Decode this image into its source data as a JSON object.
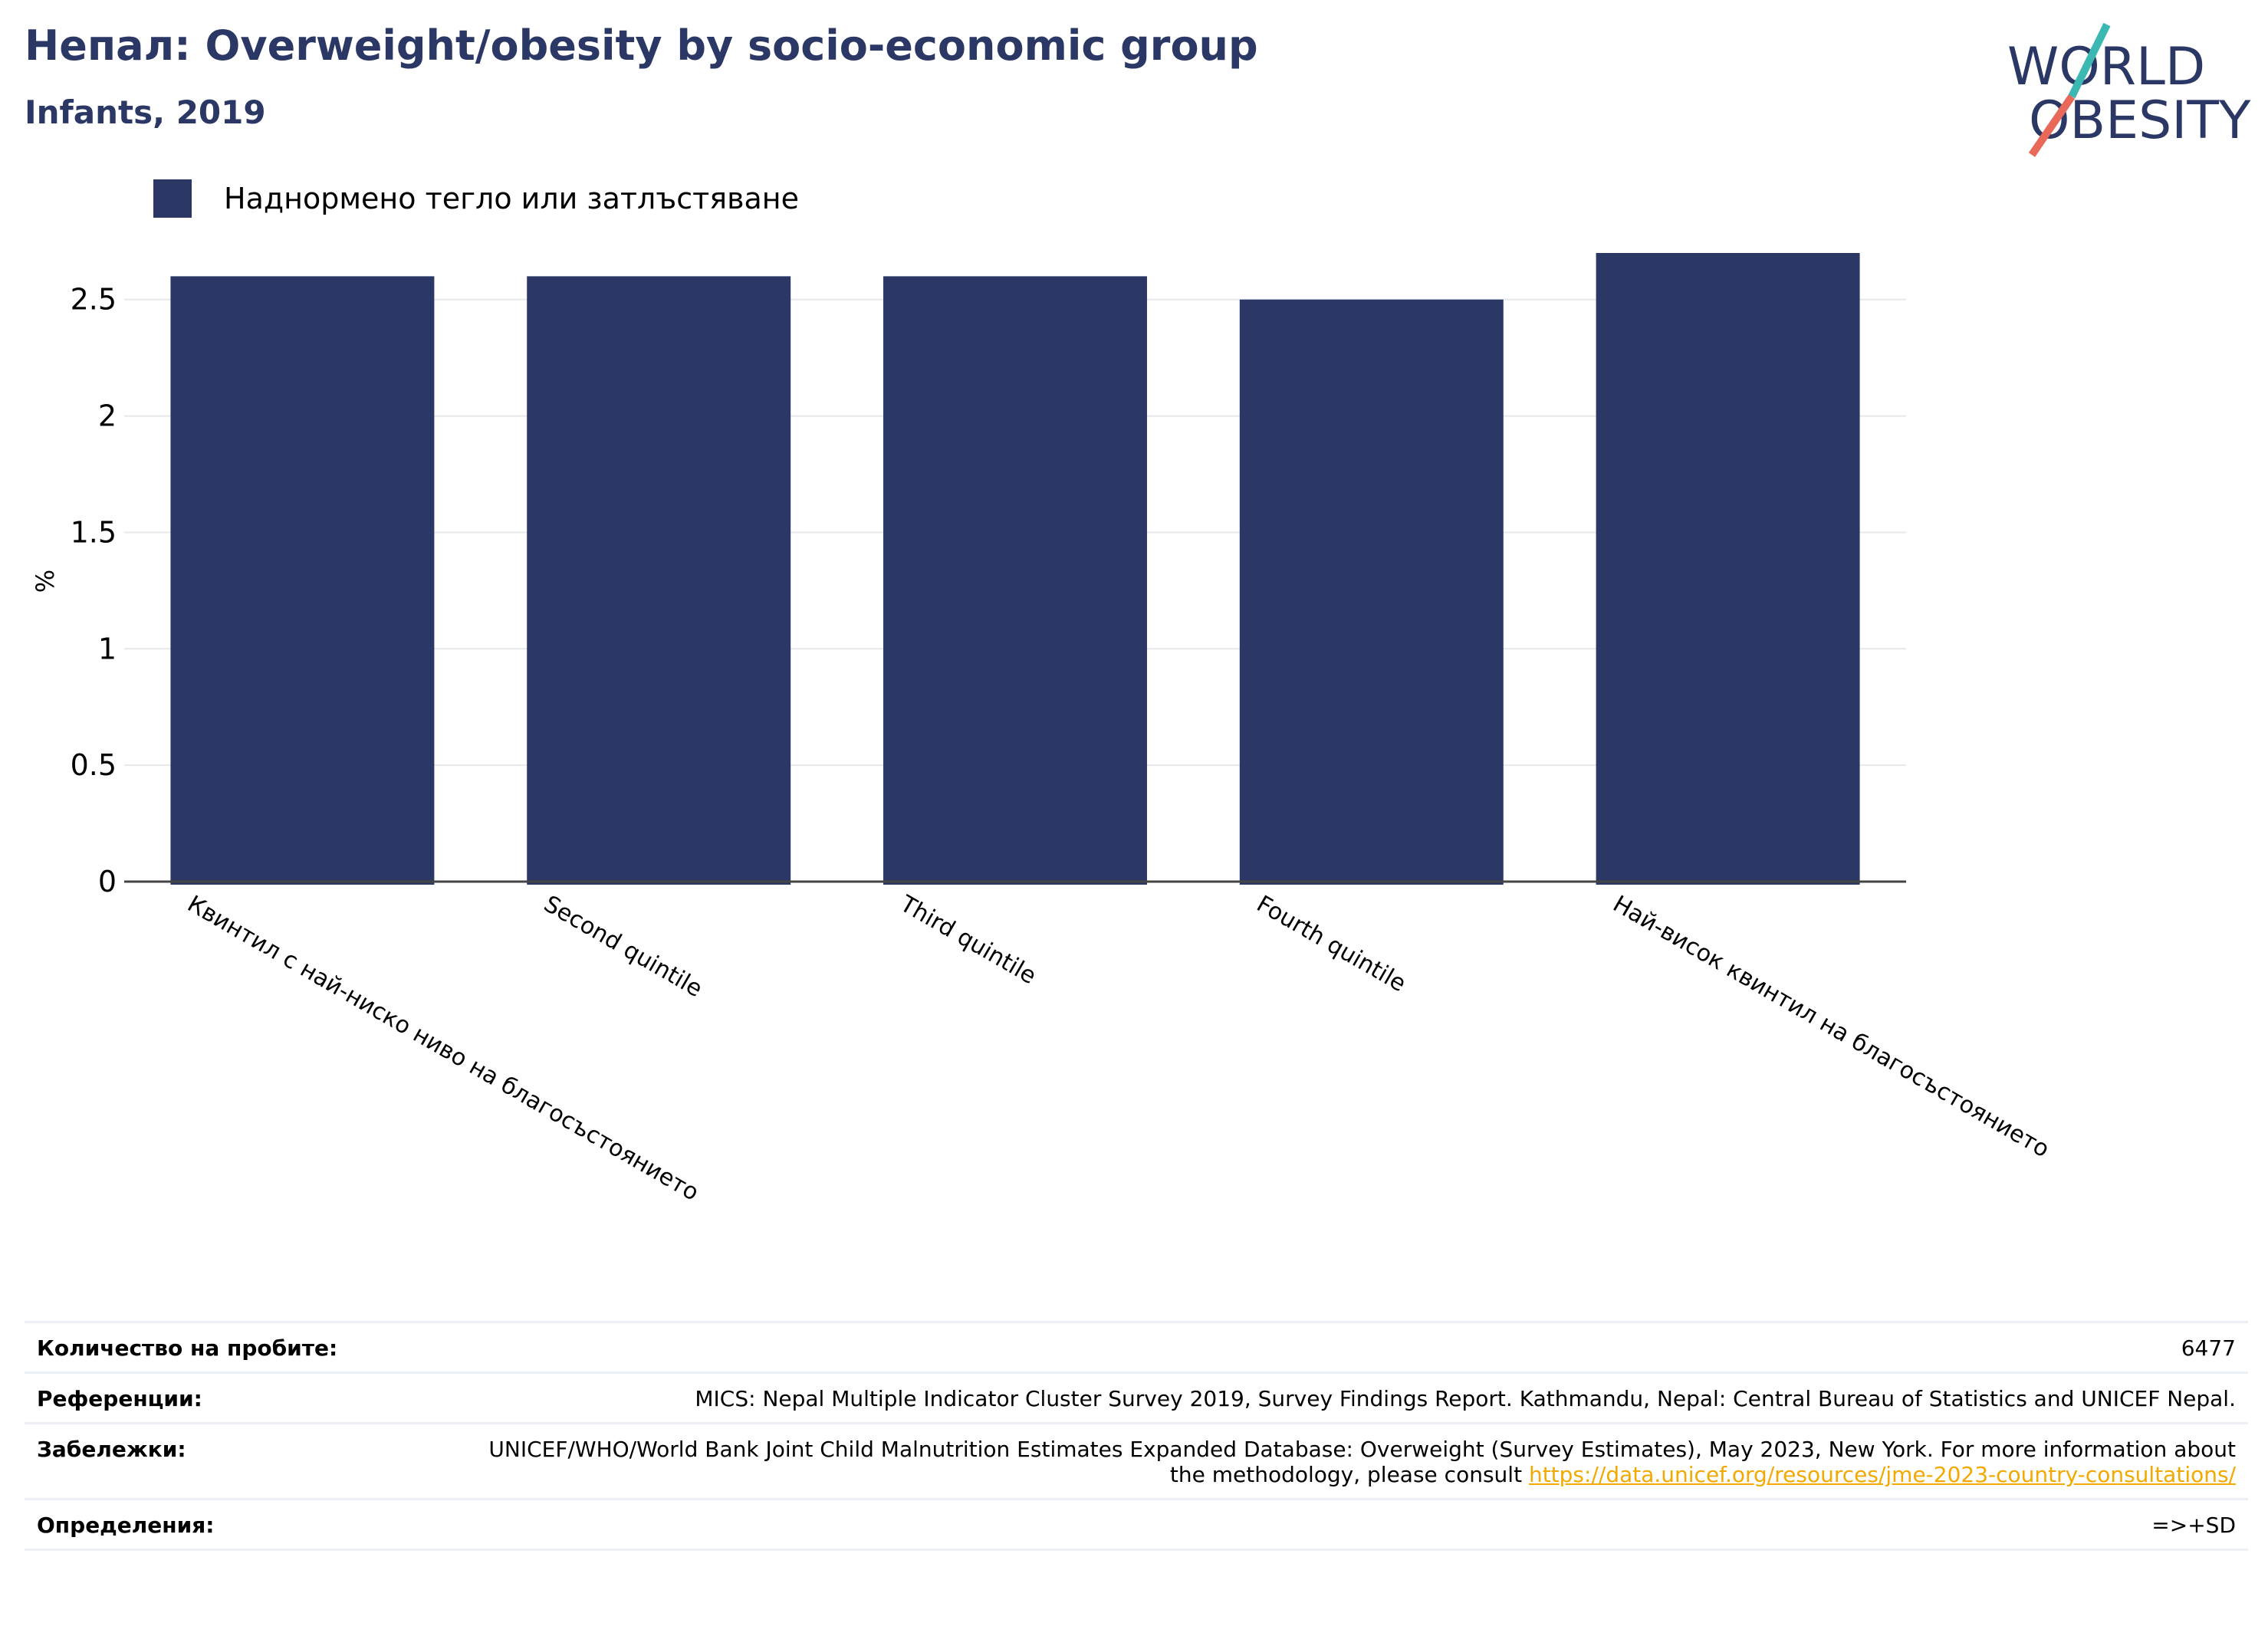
{
  "header": {
    "title": "Непал: Overweight/obesity by socio-economic group",
    "subtitle": "Infants, 2019"
  },
  "logo": {
    "line1": "WORLD",
    "line2": "OBESITY",
    "text_color": "#2b3765",
    "slash_teal": "#3bb8b2",
    "slash_red": "#e8685a"
  },
  "legend": {
    "label": "Наднормено тегло или затлъстяване",
    "color": "#2b3765"
  },
  "chart_data": {
    "type": "bar",
    "title": "Непал: Overweight/obesity by socio-economic group",
    "subtitle": "Infants, 2019",
    "ylabel": "%",
    "xlabel": "",
    "ylim": [
      0,
      2.7
    ],
    "yticks": [
      0,
      0.5,
      1,
      1.5,
      2,
      2.5
    ],
    "ytick_labels": [
      "0",
      "0.5",
      "1",
      "1.5",
      "2",
      "2.5"
    ],
    "grid": true,
    "legend_position": "top-left",
    "categories": [
      "Квинтил с най-ниско ниво на благосъстоянието",
      "Second quintile",
      "Third quintile",
      "Fourth quintile",
      "Най-висок квинтил на благосъстоянието"
    ],
    "series": [
      {
        "name": "Наднормено тегло или затлъстяване",
        "color": "#2b3765",
        "values": [
          2.6,
          2.6,
          2.6,
          2.5,
          2.7
        ]
      }
    ]
  },
  "meta": {
    "rows": [
      {
        "key": "Количество на пробите:",
        "value": "6477"
      },
      {
        "key": "Референции:",
        "value": "MICS: Nepal Multiple Indicator Cluster Survey 2019, Survey Findings Report. Kathmandu, Nepal: Central Bureau of Statistics and UNICEF Nepal."
      },
      {
        "key": "Забележки:",
        "value": "UNICEF/WHO/World Bank Joint Child Malnutrition Estimates Expanded Database: Overweight (Survey Estimates), May 2023, New York. For more information about the methodology, please consult ",
        "link": "https://data.unicef.org/resources/jme-2023-country-consultations/"
      },
      {
        "key": "Определения:",
        "value": "=>+SD"
      }
    ]
  }
}
